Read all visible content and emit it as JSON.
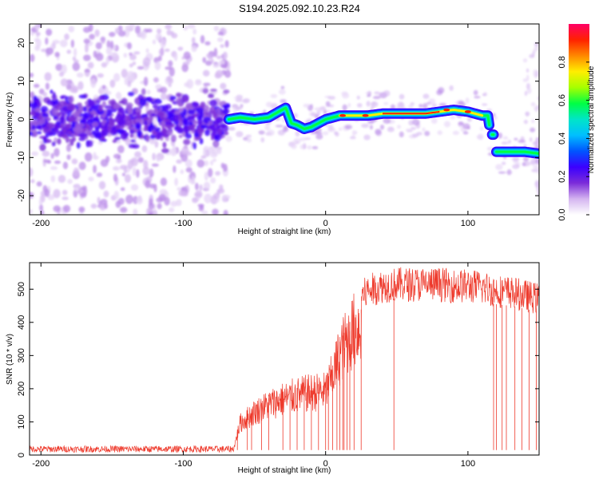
{
  "title": "S194.2025.092.10.23.R24",
  "colorbar": {
    "label": "Normalized spectral amplitude",
    "ticks": [
      0.0,
      0.2,
      0.4,
      0.6,
      0.8
    ],
    "colors": [
      "#ffffff",
      "#d4b4f0",
      "#7b2cd9",
      "#3b00ff",
      "#0055ff",
      "#00bfff",
      "#00e5c8",
      "#00ff44",
      "#a6ff00",
      "#ffee00",
      "#ff8800",
      "#ff2200",
      "#ff0066"
    ]
  },
  "chart_data": [
    {
      "type": "heatmap",
      "xlabel": "Height of straight line (km)",
      "ylabel": "Frequency (Hz)",
      "xlim": [
        -208,
        150
      ],
      "ylim": [
        -25,
        25
      ],
      "xticks": [
        -200,
        -100,
        0,
        100
      ],
      "yticks": [
        -20,
        -10,
        0,
        10,
        20
      ],
      "ridge": {
        "x": [
          -68,
          -60,
          -50,
          -40,
          -33,
          -28,
          -24,
          -20,
          -15,
          -10,
          -5,
          0,
          5,
          10,
          20,
          30,
          40,
          50,
          60,
          70,
          80,
          90,
          100,
          110,
          114,
          116,
          118,
          120,
          125,
          130,
          140,
          150
        ],
        "y": [
          0,
          0.5,
          0,
          0.5,
          2,
          3,
          -1,
          -1.5,
          -2.5,
          -2,
          -1,
          0,
          0.5,
          1,
          1,
          1,
          1.5,
          1.5,
          1.5,
          1.5,
          2,
          2.5,
          2,
          1,
          1,
          -4,
          -4,
          -8.5,
          -8.5,
          -8.5,
          -8.5,
          -9
        ]
      }
    },
    {
      "type": "line",
      "xlabel": "Height of straight line (km)",
      "ylabel": "SNR (10 * v/v)",
      "xlim": [
        -208,
        150
      ],
      "ylim": [
        0,
        580
      ],
      "xticks": [
        -200,
        -100,
        0,
        100
      ],
      "yticks": [
        0,
        100,
        200,
        300,
        400,
        500
      ],
      "color": "#ee3a2c",
      "envelope": {
        "x": [
          -208,
          -65,
          -60,
          -50,
          -40,
          -30,
          -20,
          -10,
          0,
          5,
          10,
          15,
          20,
          30,
          40,
          50,
          60,
          70,
          80,
          90,
          100,
          110,
          120,
          130,
          140,
          150
        ],
        "y": [
          15,
          15,
          120,
          160,
          190,
          210,
          225,
          235,
          240,
          300,
          380,
          430,
          470,
          505,
          520,
          525,
          525,
          525,
          525,
          520,
          520,
          515,
          505,
          500,
          490,
          480
        ]
      },
      "dropouts": [
        -62,
        -55,
        -52,
        -45,
        -40,
        -30,
        -25,
        -20,
        -15,
        -10,
        -5,
        0,
        2,
        5,
        8,
        10,
        12,
        13,
        15,
        17,
        20,
        25,
        48,
        118,
        120,
        124,
        127,
        133,
        138,
        143,
        148
      ]
    }
  ]
}
